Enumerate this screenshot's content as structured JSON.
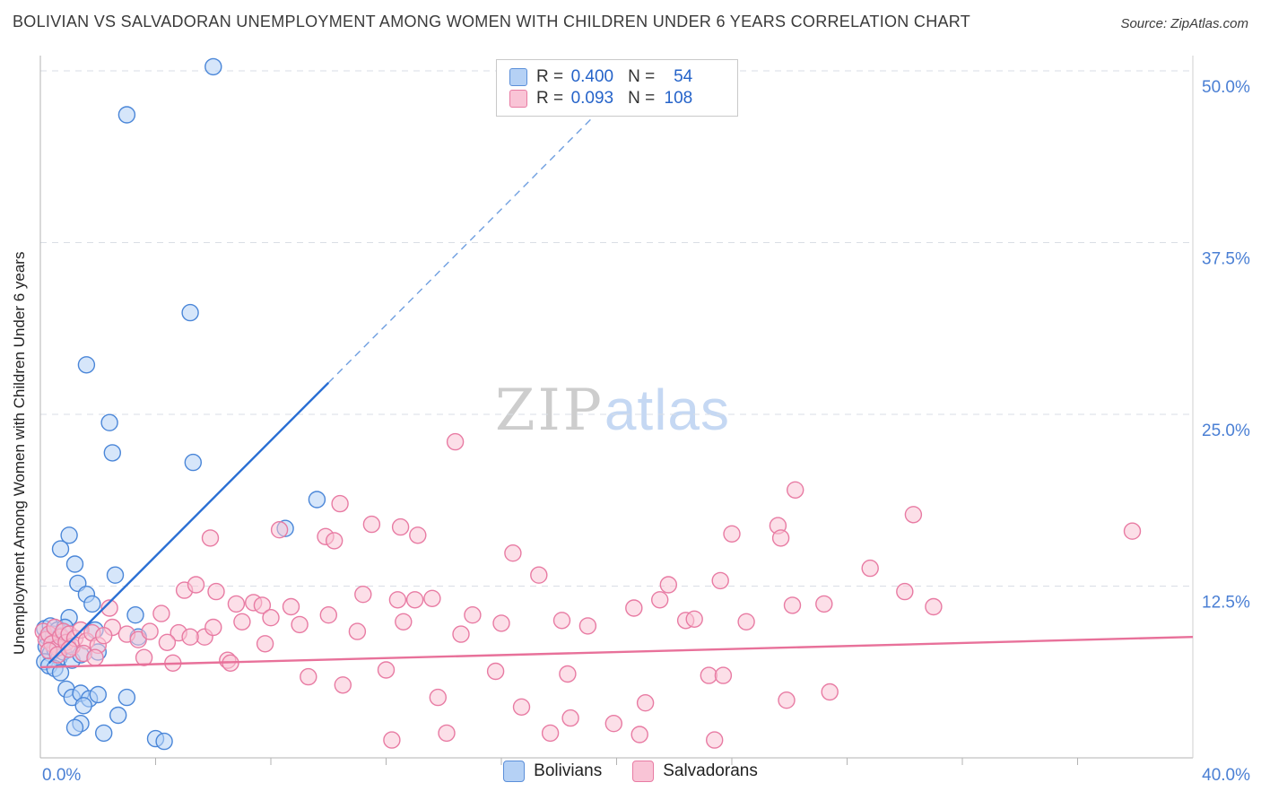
{
  "header": {
    "title": "BOLIVIAN VS SALVADORAN UNEMPLOYMENT AMONG WOMEN WITH CHILDREN UNDER 6 YEARS CORRELATION CHART",
    "source": "Source: ZipAtlas.com"
  },
  "watermark": {
    "zip": "ZIP",
    "atlas": "atlas"
  },
  "axes": {
    "y_label": "Unemployment Among Women with Children Under 6 years",
    "x_min_label": "0.0%",
    "x_max_label": "40.0%"
  },
  "legend_box": {
    "rows": [
      {
        "series": "Bolivians",
        "r_label": "R =",
        "r": "0.400",
        "n_label": "N =",
        "n": "54"
      },
      {
        "series": "Salvadorans",
        "r_label": "R =",
        "r": "0.093",
        "n_label": "N =",
        "n": "108"
      }
    ]
  },
  "bottom_legend": [
    {
      "label": "Bolivians"
    },
    {
      "label": "Salvadorans"
    }
  ],
  "colors": {
    "accent_text": "#4a7fd4",
    "value_text": "#2563c9",
    "bolivian_fill": "#b5d1f5",
    "bolivian_stroke": "#4a86d8",
    "salvadoran_fill": "#f9c4d6",
    "salvadoran_stroke": "#e87ba3",
    "bolivian_trend": "#2a6fd4",
    "salvadoran_trend": "#e8719a"
  },
  "chart_data": {
    "type": "scatter",
    "title": "Bolivian vs Salvadoran Unemployment Among Women with Children Under 6 years",
    "x_range": [
      0,
      40
    ],
    "y_range": [
      0,
      52
    ],
    "x_unit": "%",
    "y_unit": "%",
    "x_tick_step": 4,
    "y_gridlines": [
      {
        "value": 12.5,
        "label": "12.5%"
      },
      {
        "value": 25.0,
        "label": "25.0%"
      },
      {
        "value": 37.5,
        "label": "37.5%"
      },
      {
        "value": 50.0,
        "label": "50.0%"
      }
    ],
    "legend_position": "top-center",
    "series": [
      {
        "name": "Bolivians",
        "R": 0.4,
        "N": 54,
        "fill": "#b5d1f5",
        "stroke": "#4a86d8",
        "points": [
          [
            6.0,
            50.3
          ],
          [
            3.0,
            46.8
          ],
          [
            5.2,
            32.4
          ],
          [
            1.6,
            28.6
          ],
          [
            2.4,
            24.4
          ],
          [
            2.5,
            22.2
          ],
          [
            5.3,
            21.5
          ],
          [
            9.6,
            18.8
          ],
          [
            8.5,
            16.7
          ],
          [
            1.0,
            16.2
          ],
          [
            0.7,
            15.2
          ],
          [
            1.2,
            14.1
          ],
          [
            2.6,
            13.3
          ],
          [
            1.3,
            12.7
          ],
          [
            1.6,
            11.9
          ],
          [
            1.8,
            11.2
          ],
          [
            3.3,
            10.4
          ],
          [
            1.0,
            10.2
          ],
          [
            1.9,
            9.3
          ],
          [
            3.4,
            8.8
          ],
          [
            0.15,
            9.4
          ],
          [
            0.25,
            8.8
          ],
          [
            0.35,
            9.6
          ],
          [
            0.45,
            9.0
          ],
          [
            0.55,
            8.5
          ],
          [
            0.6,
            9.3
          ],
          [
            0.7,
            8.9
          ],
          [
            0.85,
            9.5
          ],
          [
            0.2,
            8.1
          ],
          [
            0.35,
            7.6
          ],
          [
            0.5,
            7.9
          ],
          [
            0.65,
            7.3
          ],
          [
            0.8,
            7.7
          ],
          [
            0.95,
            8.2
          ],
          [
            0.15,
            7.0
          ],
          [
            0.3,
            6.7
          ],
          [
            0.5,
            6.5
          ],
          [
            0.7,
            6.2
          ],
          [
            1.1,
            7.1
          ],
          [
            1.4,
            7.5
          ],
          [
            2.0,
            7.7
          ],
          [
            0.9,
            5.0
          ],
          [
            1.1,
            4.4
          ],
          [
            1.4,
            4.7
          ],
          [
            1.7,
            4.3
          ],
          [
            2.0,
            4.6
          ],
          [
            1.5,
            3.8
          ],
          [
            2.7,
            3.1
          ],
          [
            1.4,
            2.5
          ],
          [
            2.2,
            1.8
          ],
          [
            4.0,
            1.4
          ],
          [
            4.3,
            1.2
          ],
          [
            1.2,
            2.2
          ],
          [
            3.0,
            4.4
          ]
        ]
      },
      {
        "name": "Salvadorans",
        "R": 0.093,
        "N": 108,
        "fill": "#f9c4d6",
        "stroke": "#e87ba3",
        "points": [
          [
            14.4,
            23.0
          ],
          [
            26.2,
            19.5
          ],
          [
            30.3,
            17.7
          ],
          [
            37.9,
            16.5
          ],
          [
            24.0,
            16.3
          ],
          [
            25.6,
            16.9
          ],
          [
            25.7,
            16.0
          ],
          [
            11.5,
            17.0
          ],
          [
            12.5,
            16.8
          ],
          [
            10.4,
            18.5
          ],
          [
            9.9,
            16.1
          ],
          [
            10.2,
            15.8
          ],
          [
            8.3,
            16.6
          ],
          [
            13.1,
            16.2
          ],
          [
            16.4,
            14.9
          ],
          [
            5.9,
            16.0
          ],
          [
            17.3,
            13.3
          ],
          [
            23.6,
            12.9
          ],
          [
            28.8,
            13.8
          ],
          [
            5.0,
            12.2
          ],
          [
            5.4,
            12.6
          ],
          [
            6.1,
            12.1
          ],
          [
            6.8,
            11.2
          ],
          [
            7.4,
            11.3
          ],
          [
            7.7,
            11.1
          ],
          [
            8.7,
            11.0
          ],
          [
            11.2,
            11.9
          ],
          [
            12.4,
            11.5
          ],
          [
            13.0,
            11.5
          ],
          [
            13.6,
            11.6
          ],
          [
            20.6,
            10.9
          ],
          [
            21.5,
            11.5
          ],
          [
            21.8,
            12.6
          ],
          [
            26.1,
            11.1
          ],
          [
            27.2,
            11.2
          ],
          [
            31.0,
            11.0
          ],
          [
            22.4,
            10.0
          ],
          [
            22.7,
            10.1
          ],
          [
            18.1,
            10.0
          ],
          [
            15.0,
            10.4
          ],
          [
            2.4,
            10.9
          ],
          [
            2.5,
            9.5
          ],
          [
            4.2,
            10.5
          ],
          [
            4.8,
            9.1
          ],
          [
            5.7,
            8.8
          ],
          [
            6.5,
            7.1
          ],
          [
            9.3,
            5.9
          ],
          [
            10.5,
            5.3
          ],
          [
            13.8,
            4.4
          ],
          [
            12.0,
            6.4
          ],
          [
            15.8,
            6.3
          ],
          [
            16.7,
            3.7
          ],
          [
            17.7,
            1.8
          ],
          [
            18.3,
            6.1
          ],
          [
            18.4,
            2.9
          ],
          [
            19.9,
            2.5
          ],
          [
            20.8,
            1.7
          ],
          [
            21.0,
            4.0
          ],
          [
            14.1,
            1.8
          ],
          [
            12.2,
            1.3
          ],
          [
            23.2,
            6.0
          ],
          [
            23.7,
            6.0
          ],
          [
            23.4,
            1.3
          ],
          [
            25.9,
            4.2
          ],
          [
            27.4,
            4.8
          ],
          [
            0.1,
            9.2
          ],
          [
            0.2,
            8.6
          ],
          [
            0.3,
            9.0
          ],
          [
            0.4,
            8.3
          ],
          [
            0.5,
            9.5
          ],
          [
            0.6,
            8.0
          ],
          [
            0.7,
            8.8
          ],
          [
            0.8,
            9.2
          ],
          [
            0.9,
            8.4
          ],
          [
            1.0,
            9.0
          ],
          [
            1.1,
            8.1
          ],
          [
            1.2,
            8.7
          ],
          [
            1.4,
            9.3
          ],
          [
            1.6,
            8.5
          ],
          [
            1.8,
            9.1
          ],
          [
            2.0,
            8.2
          ],
          [
            2.2,
            8.9
          ],
          [
            0.3,
            7.8
          ],
          [
            0.6,
            7.5
          ],
          [
            1.0,
            7.9
          ],
          [
            1.5,
            7.6
          ],
          [
            1.9,
            7.3
          ],
          [
            3.0,
            9.0
          ],
          [
            3.4,
            8.6
          ],
          [
            3.8,
            9.2
          ],
          [
            4.4,
            8.4
          ],
          [
            5.2,
            8.8
          ],
          [
            6.0,
            9.5
          ],
          [
            7.0,
            9.9
          ],
          [
            8.0,
            10.2
          ],
          [
            9.0,
            9.7
          ],
          [
            10.0,
            10.4
          ],
          [
            11.0,
            9.2
          ],
          [
            12.6,
            9.9
          ],
          [
            14.6,
            9.0
          ],
          [
            16.0,
            9.8
          ],
          [
            19.0,
            9.6
          ],
          [
            24.5,
            9.9
          ],
          [
            7.8,
            8.3
          ],
          [
            6.6,
            6.9
          ],
          [
            4.6,
            6.9
          ],
          [
            3.6,
            7.3
          ],
          [
            30.0,
            12.1
          ]
        ]
      }
    ],
    "trend_lines": [
      {
        "name": "bolivians",
        "color": "#2a6fd4",
        "dash_color": "#6f9fe0",
        "solid": [
          [
            0.3,
            6.9
          ],
          [
            10.0,
            27.3
          ]
        ],
        "dashed_extension": [
          [
            10.0,
            27.3
          ],
          [
            20.4,
            49.2
          ]
        ]
      },
      {
        "name": "salvadorans",
        "color": "#e8719a",
        "solid": [
          [
            0.0,
            6.6
          ],
          [
            40.0,
            8.8
          ]
        ]
      }
    ]
  }
}
